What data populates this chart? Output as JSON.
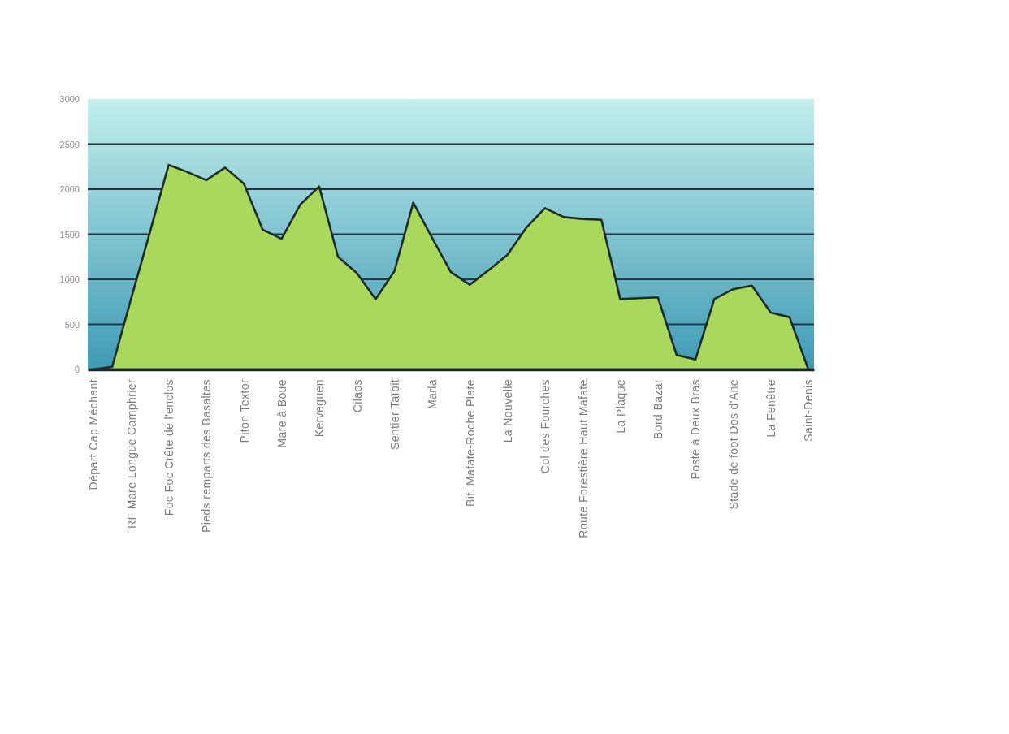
{
  "chart_data": {
    "type": "area",
    "categories": [
      "Départ Cap Méchant",
      null,
      "RF Mare Longue Camphrier",
      null,
      "Foc Foc Crête de l'enclos",
      null,
      "Pieds remparts des Basaltes",
      null,
      "Piton Textor",
      null,
      "Mare à Boue",
      null,
      "Kerveguen",
      null,
      "Cilaos",
      null,
      "Sentier Taïbit",
      null,
      "Marla",
      null,
      "Bif. Mafate-Roche Plate",
      null,
      "La Nouvelle",
      null,
      "Col des Fourches",
      null,
      "Route Forestière Haut Mafate",
      null,
      "La Plaque",
      null,
      "Bord Bazar",
      null,
      "Poste à Deux Bras",
      null,
      "Stade de foot Dos d'Ane",
      null,
      "La Fenêtre",
      null,
      "Saint-Denis"
    ],
    "values": [
      0,
      30,
      780,
      1520,
      2270,
      2190,
      2100,
      2240,
      2060,
      1550,
      1450,
      1830,
      2030,
      1250,
      1070,
      780,
      1090,
      1850,
      1460,
      1080,
      940,
      1100,
      1270,
      1570,
      1790,
      1690,
      1670,
      1660,
      780,
      790,
      800,
      160,
      110,
      780,
      890,
      930,
      630,
      580,
      0
    ],
    "color": "#a8d85c",
    "ylim": [
      0,
      3000
    ],
    "yticks": [
      0,
      500,
      1000,
      1500,
      2000,
      2500,
      3000
    ],
    "grid": "y"
  }
}
